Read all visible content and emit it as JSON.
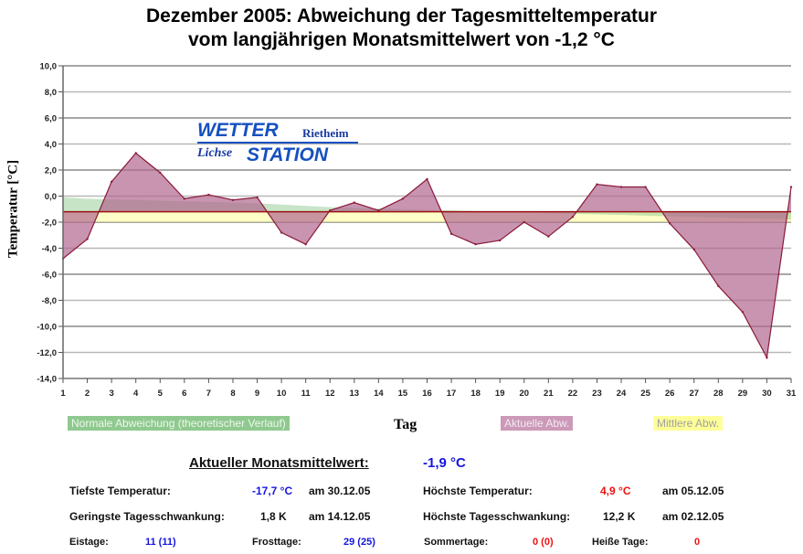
{
  "title_line1": "Dezember 2005: Abweichung der Tagesmitteltemperatur",
  "title_line2": "vom langjährigen Monatsmittelwert von -1,2 °C",
  "logo": {
    "word1": "WETTER",
    "word2": "STATION",
    "place1": "Rietheim",
    "place2": "Lichse"
  },
  "chart_data": {
    "type": "area",
    "title": "Dezember 2005: Abweichung der Tagesmitteltemperatur vom langjährigen Monatsmittelwert von -1,2 °C",
    "xlabel": "Tag",
    "ylabel": "Temperatur [°C]",
    "ylim": [
      -14,
      10
    ],
    "yticks": [
      10,
      8,
      6,
      4,
      2,
      0,
      -2,
      -4,
      -6,
      -8,
      -10,
      -12,
      -14
    ],
    "ytick_labels": [
      "10,0",
      "8,0",
      "6,0",
      "4,0",
      "2,0",
      "0,0",
      "-2,0",
      "-4,0",
      "-6,0",
      "-8,0",
      "-10,0",
      "-12,0",
      "-14,0"
    ],
    "x": [
      1,
      2,
      3,
      4,
      5,
      6,
      7,
      8,
      9,
      10,
      11,
      12,
      13,
      14,
      15,
      16,
      17,
      18,
      19,
      20,
      21,
      22,
      23,
      24,
      25,
      26,
      27,
      28,
      29,
      30,
      31
    ],
    "grid": true,
    "baseline": -1.2,
    "series": [
      {
        "name": "Aktuelle Abw.",
        "color": "#b0668f",
        "values": [
          -4.8,
          -3.3,
          1.1,
          3.3,
          1.8,
          -0.2,
          0.1,
          -0.3,
          -0.1,
          -2.8,
          -3.7,
          -1.1,
          -0.5,
          -1.1,
          -0.2,
          1.3,
          -2.9,
          -3.7,
          -3.4,
          -2.0,
          -3.1,
          -1.6,
          0.9,
          0.7,
          0.7,
          -2.1,
          -4.1,
          -6.9,
          -8.9,
          -12.4,
          0.7
        ]
      },
      {
        "name": "Normale Abweichung (theoretischer Verlauf)",
        "color": "#8fc98f",
        "values": [
          -0.1,
          -0.2,
          -0.25,
          -0.3,
          -0.35,
          -0.4,
          -0.45,
          -0.5,
          -0.55,
          -0.65,
          -0.75,
          -0.85,
          -0.9,
          -0.95,
          -1.0,
          -1.05,
          -1.1,
          -1.15,
          -1.2,
          -1.25,
          -1.3,
          -1.35,
          -1.4,
          -1.45,
          -1.5,
          -1.55,
          -1.6,
          -1.65,
          -1.7,
          -1.75,
          -1.8
        ]
      },
      {
        "name": "Mittlere Abw.",
        "color": "#ffff99",
        "range": [
          -2.0,
          -1.2
        ]
      }
    ],
    "legend": [
      "Normale Abweichung (theoretischer Verlauf)",
      "Aktuelle Abw.",
      "Mittlere Abw."
    ],
    "legend_position": "bottom"
  },
  "stats": {
    "headline_label": "Aktueller Monatsmittelwert:",
    "headline_value": "-1,9 °C",
    "min_temp_label": "Tiefste Temperatur:",
    "min_temp_value": "-17,7 °C",
    "min_temp_date": "am 30.12.05",
    "max_temp_label": "Höchste Temperatur:",
    "max_temp_value": "4,9 °C",
    "max_temp_date": "am 05.12.05",
    "min_range_label": "Geringste Tagesschwankung:",
    "min_range_value": "1,8 K",
    "min_range_date": "am 14.12.05",
    "max_range_label": "Höchste Tagesschwankung:",
    "max_range_value": "12,2 K",
    "max_range_date": "am 02.12.05",
    "ice_days_label": "Eistage:",
    "ice_days_value": "11 (11)",
    "frost_days_label": "Frosttage:",
    "frost_days_value": "29 (25)",
    "summer_days_label": "Sommertage:",
    "summer_days_value": "0 (0)",
    "hot_days_label": "Heiße Tage:",
    "hot_days_value": "0"
  }
}
